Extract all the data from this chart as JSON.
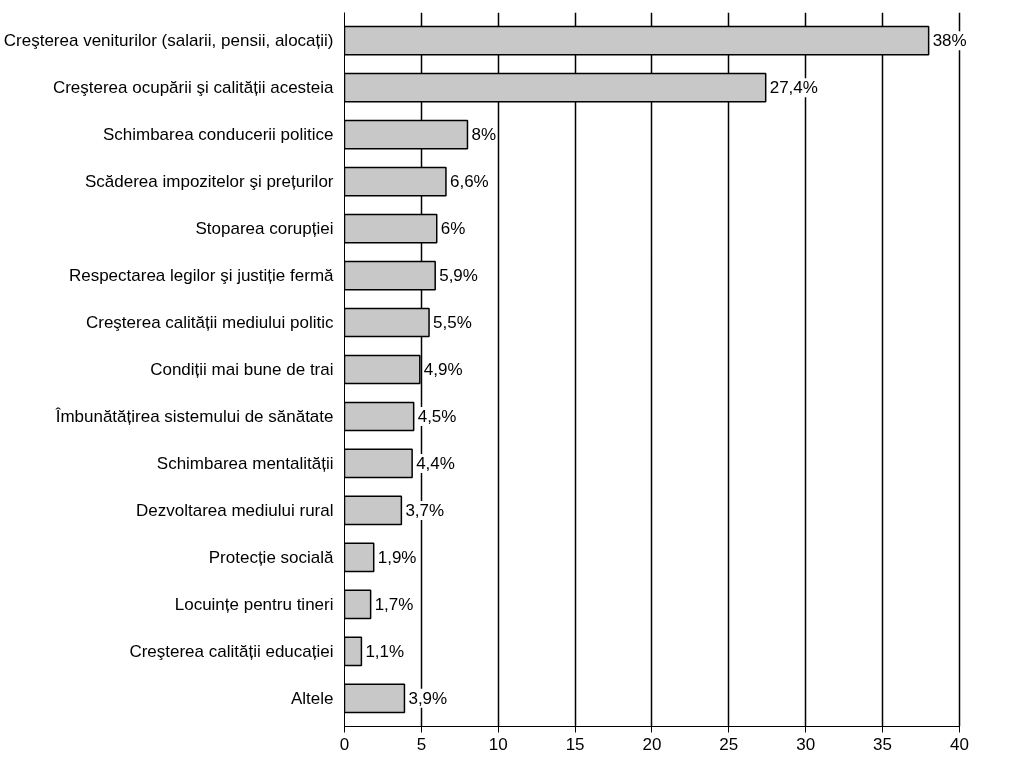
{
  "chart_data": {
    "type": "bar",
    "orientation": "horizontal",
    "categories": [
      "Creşterea veniturilor (salarii, pensii, alocații)",
      "Creşterea ocupării şi calității acesteia",
      "Schimbarea conducerii politice",
      "Scăderea impozitelor şi prețurilor",
      "Stoparea corupției",
      "Respectarea legilor şi justiție fermă",
      "Creşterea calității mediului politic",
      "Condiții mai bune de trai",
      "Îmbunătățirea sistemului de sănătate",
      "Schimbarea mentalității",
      "Dezvoltarea mediului rural",
      "Protecție socială",
      "Locuințe pentru tineri",
      "Creşterea calității educației",
      "Altele"
    ],
    "values": [
      38,
      27.4,
      8,
      6.6,
      6,
      5.9,
      5.5,
      4.9,
      4.5,
      4.4,
      3.7,
      1.9,
      1.7,
      1.1,
      3.9
    ],
    "value_labels": [
      "38%",
      "27,4%",
      "8%",
      "6,6%",
      "6%",
      "5,9%",
      "5,5%",
      "4,9%",
      "4,5%",
      "4,4%",
      "3,7%",
      "1,9%",
      "1,7%",
      "1,1%",
      "3,9%"
    ],
    "color": "#c8c8c8",
    "xlim": [
      0,
      40
    ],
    "xticks": [
      0,
      5,
      10,
      15,
      20,
      25,
      30,
      35,
      40
    ],
    "grid": "x"
  }
}
